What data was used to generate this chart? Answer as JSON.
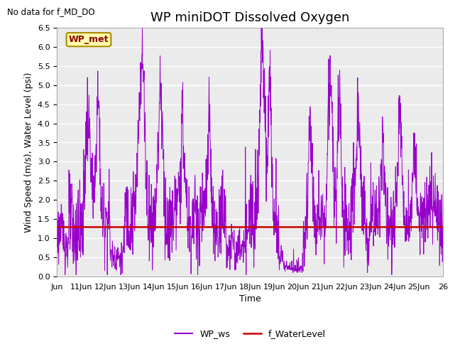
{
  "title": "WP miniDOT Dissolved Oxygen",
  "no_data_text": "No data for f_MD_DO",
  "ylabel": "Wind Speed (m/s), Water Level (psi)",
  "xlabel": "Time",
  "ylim": [
    0.0,
    6.5
  ],
  "yticks": [
    0.0,
    0.5,
    1.0,
    1.5,
    2.0,
    2.5,
    3.0,
    3.5,
    4.0,
    4.5,
    5.0,
    5.5,
    6.0,
    6.5
  ],
  "water_level_value": 1.3,
  "wp_met_label": "WP_met",
  "legend_ws_label": "WP_ws",
  "legend_wl_label": "f_WaterLevel",
  "ws_color": "#9900CC",
  "wl_color": "#CC0000",
  "background_color": "#FFFFFF",
  "plot_bg_color": "#EBEBEB",
  "title_fontsize": 13,
  "axis_label_fontsize": 9,
  "tick_label_fontsize": 8,
  "x_start_day": 10,
  "x_end_day": 26,
  "xtick_days": [
    10,
    11,
    12,
    13,
    14,
    15,
    16,
    17,
    18,
    19,
    20,
    21,
    22,
    23,
    24,
    25,
    26
  ],
  "xtick_labels": [
    "Jun",
    "11Jun",
    "12Jun",
    "13Jun",
    "14Jun",
    "15Jun",
    "16Jun",
    "17Jun",
    "18Jun",
    "19Jun",
    "20Jun",
    "21Jun",
    "22Jun",
    "23Jun",
    "24Jun",
    "25Jun",
    "26"
  ]
}
